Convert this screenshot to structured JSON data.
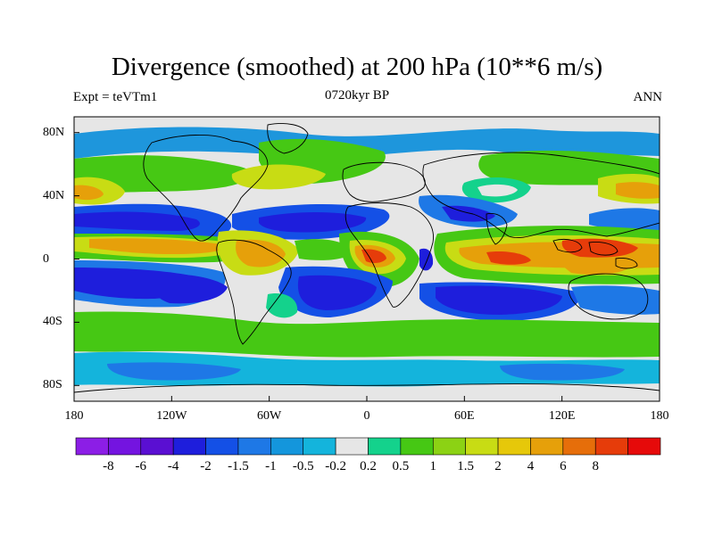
{
  "title": "Divergence (smoothed) at 200 hPa (10**6 m/s)",
  "subtitle_left": "Expt = teVTm1",
  "subtitle_center": "0720kyr BP",
  "subtitle_right": "ANN",
  "y_axis_labels": [
    {
      "text": "80N",
      "lat": 80
    },
    {
      "text": "40N",
      "lat": 40
    },
    {
      "text": "0",
      "lat": 0
    },
    {
      "text": "40S",
      "lat": -40
    },
    {
      "text": "80S",
      "lat": -80
    }
  ],
  "x_axis_labels": [
    {
      "text": "180",
      "lon": -180
    },
    {
      "text": "120W",
      "lon": -120
    },
    {
      "text": "60W",
      "lon": -60
    },
    {
      "text": "0",
      "lon": 0
    },
    {
      "text": "60E",
      "lon": 60
    },
    {
      "text": "120E",
      "lon": 120
    },
    {
      "text": "180",
      "lon": 180
    }
  ],
  "colorbar": {
    "colors": [
      "#8c1ee6",
      "#7414e0",
      "#5a0fd2",
      "#1e1edc",
      "#1450e6",
      "#1e78e6",
      "#1496dc",
      "#14b4dc",
      "#e6e6e6",
      "#14d28c",
      "#46c814",
      "#8cd214",
      "#c8dc14",
      "#e6c80a",
      "#e6a00a",
      "#e66e0a",
      "#e63c0a",
      "#e60a0a"
    ],
    "labels": [
      "-8",
      "-6",
      "-4",
      "-2",
      "-1.5",
      "-1",
      "-0.5",
      "-0.2",
      "0.2",
      "0.5",
      "1",
      "1.5",
      "2",
      "4",
      "6",
      "8"
    ]
  },
  "colors": {
    "neutral": "#e6e6e6",
    "dark_blue": "#1e1edc",
    "mid_blue": "#1450e6",
    "blue": "#1e78e6",
    "light_blue": "#14b4dc",
    "green": "#46c814",
    "light_green": "#14d28c",
    "yellow": "#c8dc14",
    "orange": "#e6a00a",
    "red": "#e63c0a",
    "coast": "#000000"
  }
}
